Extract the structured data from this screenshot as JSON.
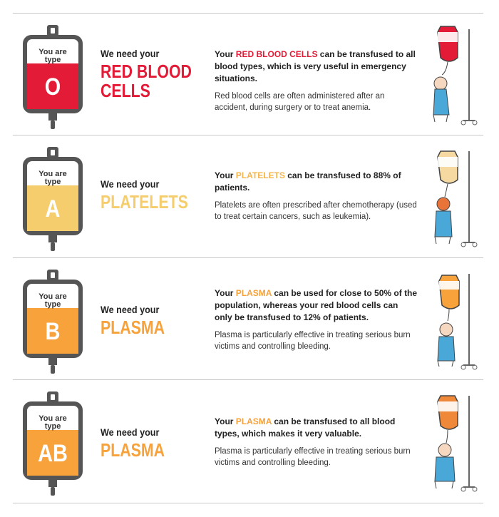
{
  "colors": {
    "red": "#e31b37",
    "pale_yellow": "#f5cd6c",
    "orange": "#f7a23b",
    "bag_gray": "#555555"
  },
  "rows": [
    {
      "bag_label": "You are type",
      "type": "O",
      "need_prefix": "We need your",
      "product_line1": "RED BLOOD",
      "product_line2": "CELLS",
      "lead_before": "Your ",
      "lead_highlight": "RED BLOOD CELLS",
      "lead_after": " can be transfused to all blood types, which is very useful in emergency situations.",
      "body": "Red blood cells are often administered after an accident, during surgery or to treat anemia.",
      "icon": "iv-bag-patient-icon"
    },
    {
      "bag_label": "You are type",
      "type": "A",
      "need_prefix": "We need your",
      "product_line1": "PLATELETS",
      "product_line2": "",
      "lead_before": "Your ",
      "lead_highlight": "PLATELETS",
      "lead_after": " can be transfused to 88% of patients.",
      "body": "Platelets are often prescribed after chemotherapy (used to treat certain cancers, such as leukemia).",
      "icon": "iv-bag-patient-icon"
    },
    {
      "bag_label": "You are type",
      "type": "B",
      "need_prefix": "We need your",
      "product_line1": "PLASMA",
      "product_line2": "",
      "lead_before": "Your ",
      "lead_highlight": "PLASMA",
      "lead_after": " can be used for close to 50% of the population, whereas your red blood cells can only be transfused to 12% of patients.",
      "body": "Plasma is particularly effective in treating serious burn victims and controlling bleeding.",
      "icon": "iv-bag-patient-icon"
    },
    {
      "bag_label": "You are type",
      "type": "AB",
      "need_prefix": "We need your",
      "product_line1": "PLASMA",
      "product_line2": "",
      "lead_before": "Your ",
      "lead_highlight": "PLASMA",
      "lead_after": " can be transfused to all blood types, which makes it very valuable.",
      "body": "Plasma is particularly effective in treating serious burn victims and controlling bleeding.",
      "icon": "iv-bag-patient-icon"
    }
  ]
}
